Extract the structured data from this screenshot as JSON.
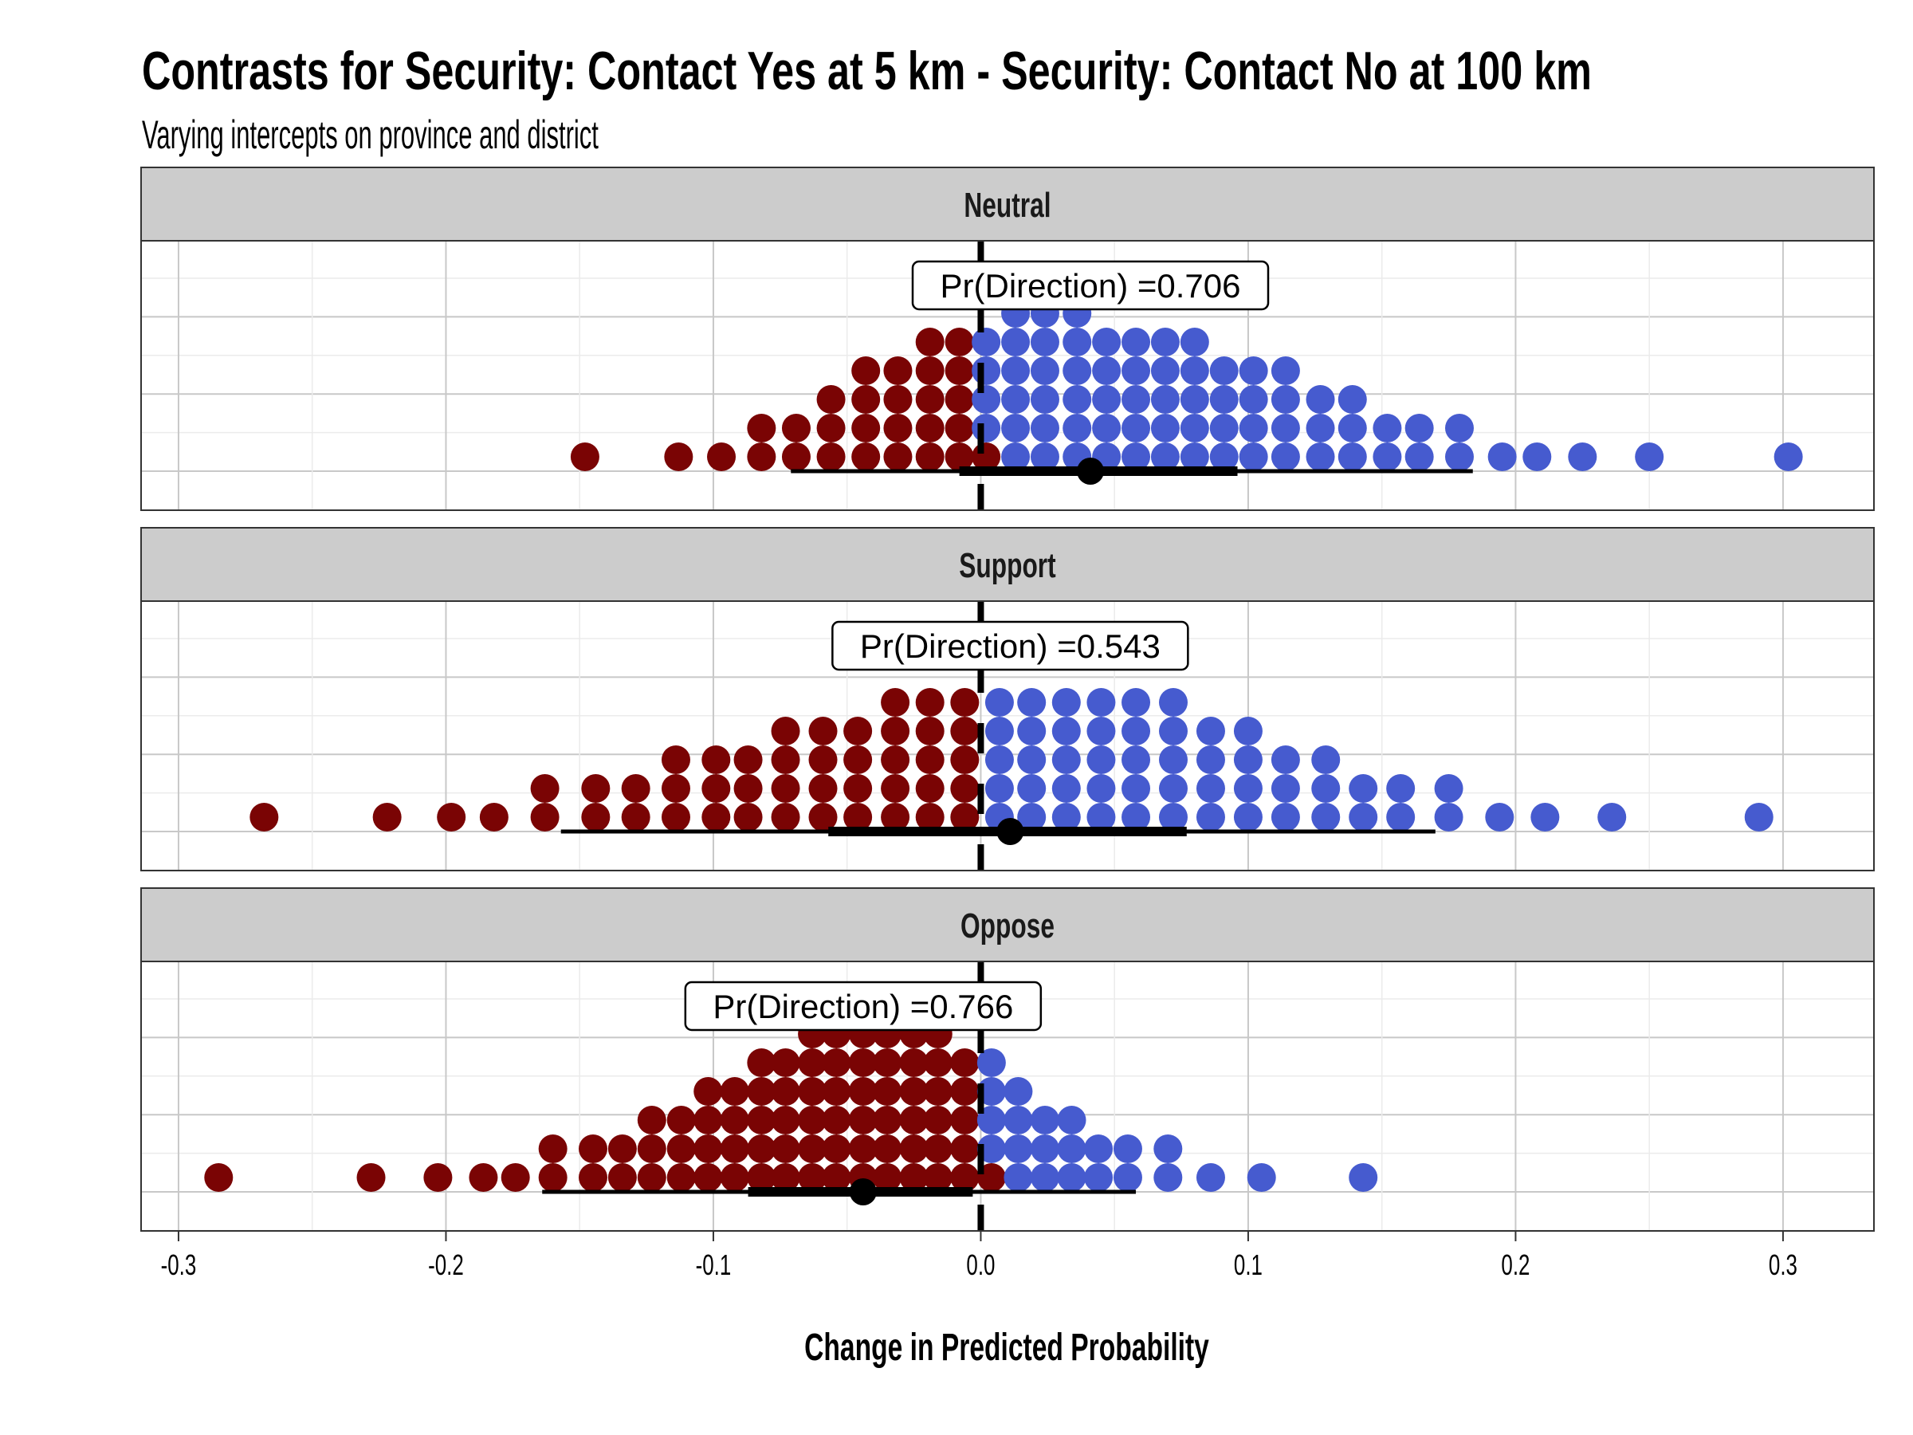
{
  "chart_data": {
    "type": "dotplot",
    "title": "Contrasts for Security: Contact Yes at 5 km - Security: Contact No at 100 km",
    "subtitle": "Varying intercepts on province and district",
    "xlabel": "Change in Predicted Probability",
    "ylabel": "",
    "xlim": [
      -0.314,
      0.334
    ],
    "x_ticks": [
      {
        "value": -0.3,
        "label": "-0.3"
      },
      {
        "value": -0.2,
        "label": "-0.2"
      },
      {
        "value": -0.1,
        "label": "-0.1"
      },
      {
        "value": 0.0,
        "label": "0.0"
      },
      {
        "value": 0.1,
        "label": "0.1"
      },
      {
        "value": 0.2,
        "label": "0.2"
      },
      {
        "value": 0.3,
        "label": "0.3"
      }
    ],
    "grid": true,
    "reference_line": {
      "value": 0,
      "style": "dashed"
    },
    "colors": {
      "negative": "#7a0404",
      "positive": "#465bcf",
      "strip_bg": "#cccccc",
      "interval": "#000000"
    },
    "panels": [
      {
        "name": "Neutral",
        "pd_label": "Pr(Direction) =0.706",
        "pd": 0.706,
        "median": 0.041,
        "interval_inner": [
          -0.008,
          0.096
        ],
        "interval_outer": [
          -0.071,
          0.184
        ],
        "negative_columns": [
          {
            "x": -0.148,
            "n": 1
          },
          {
            "x": -0.113,
            "n": 1
          },
          {
            "x": -0.097,
            "n": 1
          },
          {
            "x": -0.082,
            "n": 2
          },
          {
            "x": -0.069,
            "n": 2
          },
          {
            "x": -0.056,
            "n": 3
          },
          {
            "x": -0.043,
            "n": 4
          },
          {
            "x": -0.031,
            "n": 4
          },
          {
            "x": -0.019,
            "n": 5
          },
          {
            "x": -0.008,
            "n": 5
          },
          {
            "x": 0.002,
            "n": 1
          }
        ],
        "positive_columns": [
          {
            "x": 0.002,
            "n": 4,
            "start": 1
          },
          {
            "x": 0.013,
            "n": 6
          },
          {
            "x": 0.024,
            "n": 6
          },
          {
            "x": 0.036,
            "n": 6
          },
          {
            "x": 0.047,
            "n": 5
          },
          {
            "x": 0.058,
            "n": 5
          },
          {
            "x": 0.069,
            "n": 5
          },
          {
            "x": 0.08,
            "n": 5
          },
          {
            "x": 0.091,
            "n": 4
          },
          {
            "x": 0.102,
            "n": 4
          },
          {
            "x": 0.114,
            "n": 4
          },
          {
            "x": 0.127,
            "n": 3
          },
          {
            "x": 0.139,
            "n": 3
          },
          {
            "x": 0.152,
            "n": 2
          },
          {
            "x": 0.164,
            "n": 2
          },
          {
            "x": 0.179,
            "n": 2
          },
          {
            "x": 0.195,
            "n": 1
          },
          {
            "x": 0.208,
            "n": 1
          },
          {
            "x": 0.225,
            "n": 1
          },
          {
            "x": 0.25,
            "n": 1
          },
          {
            "x": 0.302,
            "n": 1
          }
        ]
      },
      {
        "name": "Support",
        "pd_label": "Pr(Direction) =0.543",
        "pd": 0.543,
        "median": 0.011,
        "interval_inner": [
          -0.057,
          0.077
        ],
        "interval_outer": [
          -0.157,
          0.17
        ],
        "negative_columns": [
          {
            "x": -0.268,
            "n": 1
          },
          {
            "x": -0.222,
            "n": 1
          },
          {
            "x": -0.198,
            "n": 1
          },
          {
            "x": -0.182,
            "n": 1
          },
          {
            "x": -0.163,
            "n": 2
          },
          {
            "x": -0.144,
            "n": 2
          },
          {
            "x": -0.129,
            "n": 2
          },
          {
            "x": -0.114,
            "n": 3
          },
          {
            "x": -0.099,
            "n": 3
          },
          {
            "x": -0.087,
            "n": 3
          },
          {
            "x": -0.073,
            "n": 4
          },
          {
            "x": -0.059,
            "n": 4
          },
          {
            "x": -0.046,
            "n": 4
          },
          {
            "x": -0.032,
            "n": 5
          },
          {
            "x": -0.019,
            "n": 5
          },
          {
            "x": -0.006,
            "n": 5
          }
        ],
        "positive_columns": [
          {
            "x": 0.007,
            "n": 5
          },
          {
            "x": 0.019,
            "n": 5
          },
          {
            "x": 0.032,
            "n": 5
          },
          {
            "x": 0.045,
            "n": 5
          },
          {
            "x": 0.058,
            "n": 5
          },
          {
            "x": 0.072,
            "n": 5
          },
          {
            "x": 0.086,
            "n": 4
          },
          {
            "x": 0.1,
            "n": 4
          },
          {
            "x": 0.114,
            "n": 3
          },
          {
            "x": 0.129,
            "n": 3
          },
          {
            "x": 0.143,
            "n": 2
          },
          {
            "x": 0.157,
            "n": 2
          },
          {
            "x": 0.175,
            "n": 2
          },
          {
            "x": 0.194,
            "n": 1
          },
          {
            "x": 0.211,
            "n": 1
          },
          {
            "x": 0.236,
            "n": 1
          },
          {
            "x": 0.291,
            "n": 1
          }
        ]
      },
      {
        "name": "Oppose",
        "pd_label": "Pr(Direction) =0.766",
        "pd": 0.766,
        "median": -0.044,
        "interval_inner": [
          -0.087,
          -0.003
        ],
        "interval_outer": [
          -0.164,
          0.058
        ],
        "negative_columns": [
          {
            "x": -0.285,
            "n": 1
          },
          {
            "x": -0.228,
            "n": 1
          },
          {
            "x": -0.203,
            "n": 1
          },
          {
            "x": -0.186,
            "n": 1
          },
          {
            "x": -0.174,
            "n": 1
          },
          {
            "x": -0.16,
            "n": 2
          },
          {
            "x": -0.145,
            "n": 2
          },
          {
            "x": -0.134,
            "n": 2
          },
          {
            "x": -0.123,
            "n": 3
          },
          {
            "x": -0.112,
            "n": 3
          },
          {
            "x": -0.102,
            "n": 4
          },
          {
            "x": -0.092,
            "n": 4
          },
          {
            "x": -0.082,
            "n": 5
          },
          {
            "x": -0.073,
            "n": 5
          },
          {
            "x": -0.063,
            "n": 6
          },
          {
            "x": -0.054,
            "n": 6
          },
          {
            "x": -0.044,
            "n": 6
          },
          {
            "x": -0.035,
            "n": 6
          },
          {
            "x": -0.025,
            "n": 6
          },
          {
            "x": -0.016,
            "n": 6
          },
          {
            "x": -0.006,
            "n": 5
          },
          {
            "x": 0.004,
            "n": 1
          }
        ],
        "positive_columns": [
          {
            "x": 0.004,
            "n": 4,
            "start": 1
          },
          {
            "x": 0.014,
            "n": 4
          },
          {
            "x": 0.024,
            "n": 3
          },
          {
            "x": 0.034,
            "n": 3
          },
          {
            "x": 0.044,
            "n": 2
          },
          {
            "x": 0.055,
            "n": 2
          },
          {
            "x": 0.07,
            "n": 2
          },
          {
            "x": 0.086,
            "n": 1
          },
          {
            "x": 0.105,
            "n": 1
          },
          {
            "x": 0.143,
            "n": 1
          }
        ]
      }
    ]
  }
}
